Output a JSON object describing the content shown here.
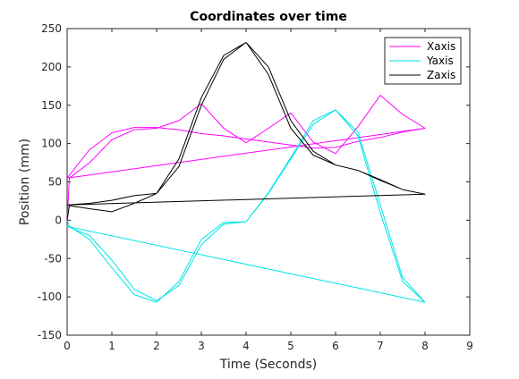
{
  "chart_data": {
    "type": "line",
    "title": "Coordinates over time",
    "xlabel": "Time (Seconds)",
    "ylabel": "Position (mm)",
    "xlim": [
      0,
      9
    ],
    "ylim": [
      -150,
      250
    ],
    "xticks": [
      0,
      1,
      2,
      3,
      4,
      5,
      6,
      7,
      8,
      9
    ],
    "yticks": [
      -150,
      -100,
      -50,
      0,
      50,
      100,
      150,
      200,
      250
    ],
    "grid": false,
    "legend_position": "top-right",
    "series": [
      {
        "name": "Xaxis",
        "color": "#ff00ff",
        "segments": [
          [
            [
              0,
              0
            ],
            [
              0.05,
              55
            ],
            [
              0.5,
              75
            ],
            [
              1,
              105
            ],
            [
              1.5,
              118
            ],
            [
              2,
              120
            ],
            [
              2.5,
              130
            ],
            [
              3,
              152
            ],
            [
              3.5,
              120
            ],
            [
              4,
              101
            ],
            [
              4.5,
              120
            ],
            [
              5,
              140
            ],
            [
              5.5,
              102
            ],
            [
              6,
              87
            ],
            [
              6.5,
              122
            ],
            [
              7,
              163
            ],
            [
              7.5,
              138
            ],
            [
              8,
              120
            ],
            [
              7.5,
              115
            ],
            [
              7,
              108
            ],
            [
              6.5,
              103
            ],
            [
              6,
              95
            ],
            [
              5.5,
              94
            ],
            [
              5,
              98
            ],
            [
              4.5,
              102
            ],
            [
              4,
              106
            ],
            [
              3.5,
              110
            ],
            [
              3,
              113
            ],
            [
              2.5,
              118
            ],
            [
              2,
              121
            ],
            [
              1.5,
              121
            ],
            [
              1,
              114
            ],
            [
              0.5,
              92
            ],
            [
              0,
              55
            ],
            [
              8,
              120
            ]
          ]
        ]
      },
      {
        "name": "Yaxis",
        "color": "#00e5e5",
        "segments": [
          [
            [
              0,
              0
            ],
            [
              0.05,
              -8
            ],
            [
              0.5,
              -25
            ],
            [
              1,
              -62
            ],
            [
              1.5,
              -97
            ],
            [
              2,
              -107
            ],
            [
              2.5,
              -80
            ],
            [
              3,
              -25
            ],
            [
              3.5,
              -3
            ],
            [
              4,
              -2
            ],
            [
              4.5,
              35
            ],
            [
              5,
              80
            ],
            [
              5.5,
              125
            ],
            [
              6,
              144
            ],
            [
              6.5,
              110
            ],
            [
              7,
              10
            ],
            [
              7.5,
              -80
            ],
            [
              8,
              -107
            ],
            [
              7.5,
              -75
            ],
            [
              7,
              20
            ],
            [
              6.5,
              115
            ],
            [
              6,
              144
            ],
            [
              5.5,
              130
            ],
            [
              5,
              82
            ],
            [
              4.5,
              36
            ],
            [
              4,
              -2
            ],
            [
              3.5,
              -5
            ],
            [
              3,
              -32
            ],
            [
              2.5,
              -85
            ],
            [
              2,
              -105
            ],
            [
              1.5,
              -90
            ],
            [
              1,
              -52
            ],
            [
              0.5,
              -20
            ],
            [
              0,
              -8
            ],
            [
              8,
              -107
            ]
          ]
        ]
      },
      {
        "name": "Zaxis",
        "color": "#000000",
        "segments": [
          [
            [
              0,
              0
            ],
            [
              0.05,
              19
            ],
            [
              0.5,
              15
            ],
            [
              1,
              11
            ],
            [
              1.5,
              22
            ],
            [
              2,
              35
            ],
            [
              2.5,
              70
            ],
            [
              3,
              150
            ],
            [
              3.5,
              210
            ],
            [
              4,
              232
            ],
            [
              4.5,
              190
            ],
            [
              5,
              120
            ],
            [
              5.5,
              85
            ],
            [
              6,
              72
            ],
            [
              6.5,
              65
            ],
            [
              7,
              52
            ],
            [
              7.5,
              40
            ],
            [
              8,
              34
            ],
            [
              7.5,
              40
            ],
            [
              7,
              53
            ],
            [
              6.5,
              65
            ],
            [
              6,
              72
            ],
            [
              5.5,
              90
            ],
            [
              5,
              130
            ],
            [
              4.5,
              200
            ],
            [
              4,
              232
            ],
            [
              3.5,
              215
            ],
            [
              3,
              160
            ],
            [
              2.5,
              80
            ],
            [
              2,
              35
            ],
            [
              1.5,
              32
            ],
            [
              1,
              26
            ],
            [
              0.5,
              22
            ],
            [
              0,
              20
            ],
            [
              8,
              34
            ]
          ]
        ]
      }
    ]
  }
}
